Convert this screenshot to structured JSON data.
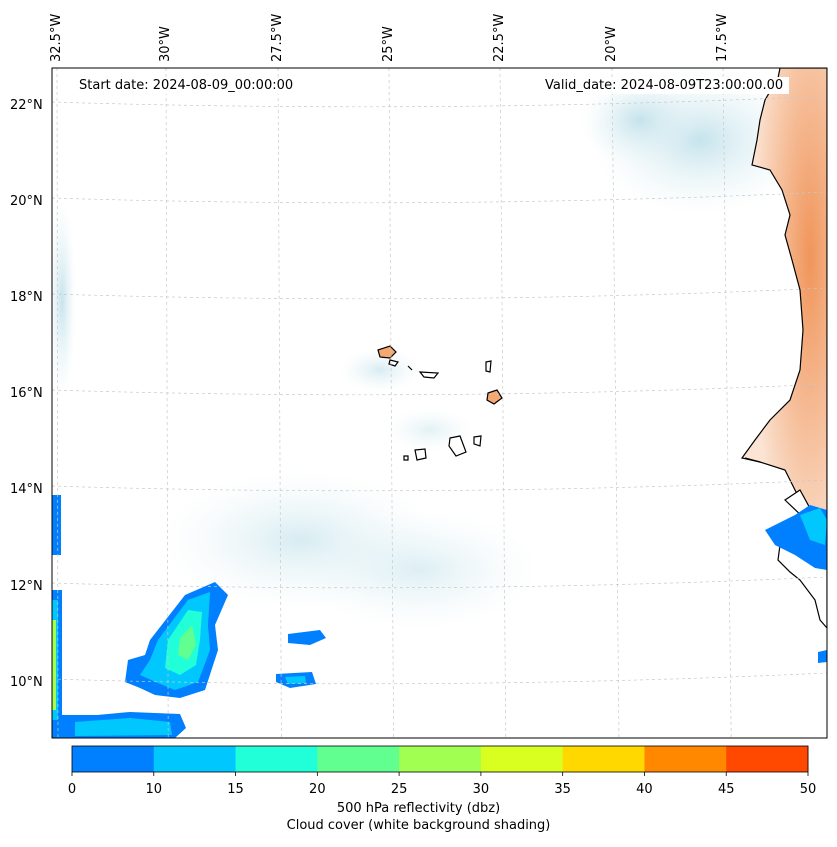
{
  "map": {
    "start_label": "Start date: 2024-08-09_00:00:00",
    "valid_label": "Valid_date: 2024-08-09T23:00:00.00",
    "lon_labels": [
      "32.5°W",
      "30°W",
      "27.5°W",
      "25°W",
      "22.5°W",
      "20°W",
      "17.5°W"
    ],
    "lat_labels": [
      "22°N",
      "20°N",
      "18°N",
      "16°N",
      "14°N",
      "12°N",
      "10°N"
    ],
    "land_color": "#f4a872",
    "coast_color": "#000000"
  },
  "colorbar": {
    "ticks": [
      "0",
      "10",
      "15",
      "20",
      "25",
      "30",
      "35",
      "40",
      "45",
      "50"
    ],
    "colors": [
      "#0080ff",
      "#00c8ff",
      "#20ffd8",
      "#60ff90",
      "#a0ff50",
      "#d8ff20",
      "#ffd800",
      "#ff8800",
      "#ff4800"
    ],
    "label_line1": "500 hPa reflectivity (dbz)",
    "label_line2": "Cloud cover (white background shading)"
  }
}
